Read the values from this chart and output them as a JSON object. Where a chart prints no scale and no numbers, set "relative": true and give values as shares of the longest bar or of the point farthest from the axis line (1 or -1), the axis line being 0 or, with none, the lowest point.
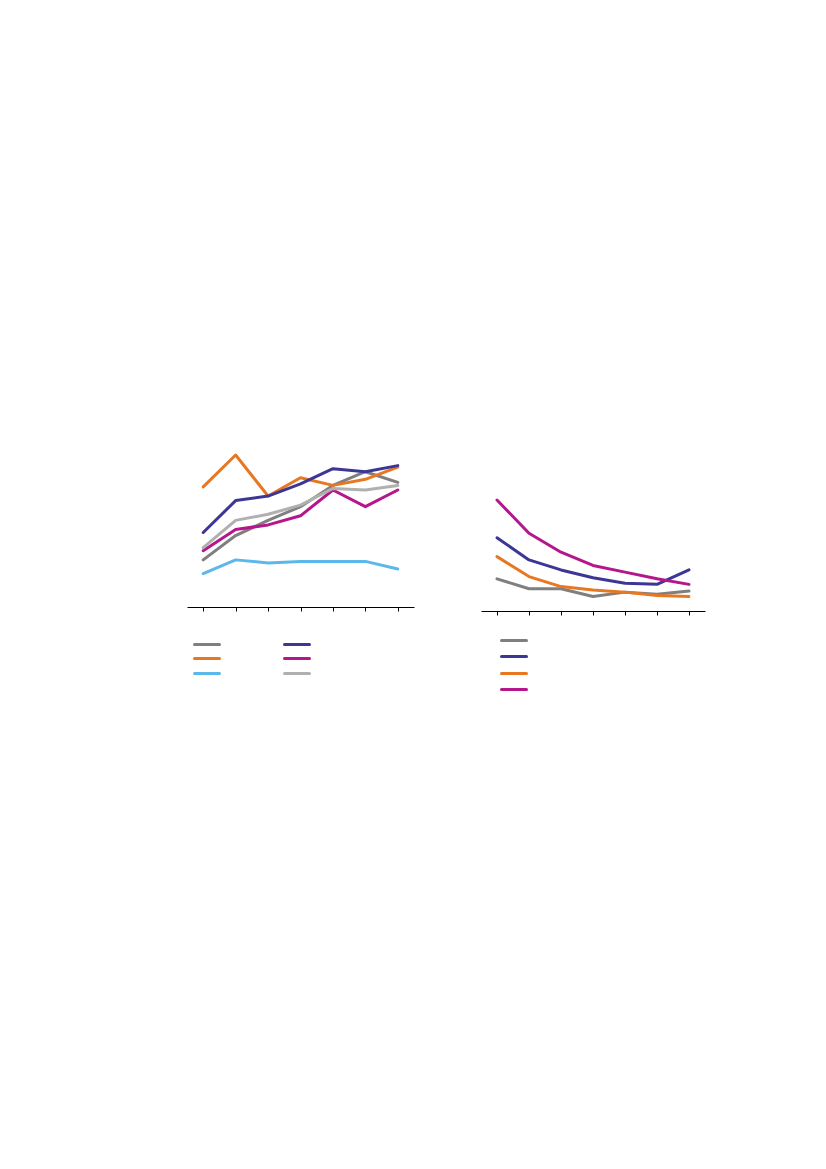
{
  "chart_data": [
    {
      "type": "line",
      "relative": true,
      "categories": [
        null,
        null,
        null,
        null,
        null,
        null,
        null
      ],
      "grid": false,
      "series": [
        {
          "color": "#7f7f7f",
          "values": [
            0.31,
            0.47,
            0.57,
            0.66,
            0.8,
            0.89,
            0.82
          ]
        },
        {
          "color": "#e87722",
          "values": [
            0.79,
            1,
            0.73,
            0.85,
            0.8,
            0.84,
            0.92
          ]
        },
        {
          "color": "#5bb8ea",
          "values": [
            0.22,
            0.31,
            0.29,
            0.3,
            0.3,
            0.3,
            0.25
          ]
        },
        {
          "color": "#3c3695",
          "values": [
            0.49,
            0.7,
            0.73,
            0.81,
            0.91,
            0.89,
            0.93
          ]
        },
        {
          "color": "#b5168c",
          "values": [
            0.37,
            0.51,
            0.54,
            0.6,
            0.77,
            0.66,
            0.77
          ]
        },
        {
          "color": "#b0b0b0",
          "values": [
            0.39,
            0.57,
            0.61,
            0.67,
            0.78,
            0.77,
            0.8
          ]
        }
      ]
    },
    {
      "type": "line",
      "relative": true,
      "categories": [
        null,
        null,
        null,
        null,
        null,
        null,
        null
      ],
      "grid": false,
      "series": [
        {
          "color": "#7f7f7f",
          "values": [
            0.29,
            0.2,
            0.2,
            0.13,
            0.17,
            0.15,
            0.18
          ]
        },
        {
          "color": "#3c3695",
          "values": [
            0.66,
            0.46,
            0.37,
            0.3,
            0.25,
            0.24,
            0.37
          ]
        },
        {
          "color": "#e87722",
          "values": [
            0.49,
            0.31,
            0.22,
            0.19,
            0.17,
            0.14,
            0.13
          ]
        },
        {
          "color": "#b5168c",
          "values": [
            1,
            0.7,
            0.53,
            0.41,
            0.35,
            0.29,
            0.24
          ]
        }
      ]
    }
  ]
}
